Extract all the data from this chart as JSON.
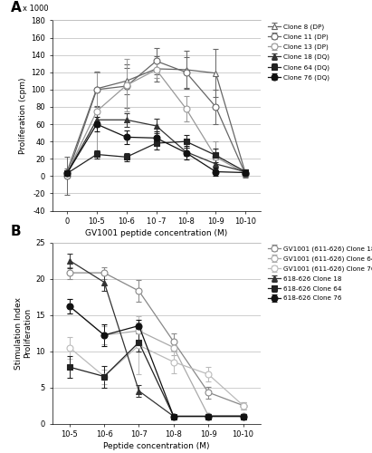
{
  "panel_A": {
    "x_labels": [
      "0",
      "10-5",
      "10-6",
      "10 -7",
      "10-8",
      "10-9",
      "10-10"
    ],
    "x_positions": [
      0,
      1,
      2,
      3,
      4,
      5,
      6
    ],
    "ylabel": "Proliferation (cpm)",
    "xlabel": "GV1001 peptide concentration (M)",
    "y_scale_label": "x 1000",
    "ylim": [
      -40,
      180
    ],
    "yticks": [
      -40,
      -20,
      0,
      20,
      40,
      60,
      80,
      100,
      120,
      140,
      160,
      180
    ],
    "series": [
      {
        "label": "Clone 8 (DP)",
        "marker": "^",
        "filled": false,
        "color": "#666666",
        "linewidth": 0.9,
        "markersize": 5,
        "values": [
          5,
          101,
          110,
          124,
          123,
          119,
          3
        ],
        "errors": [
          4,
          20,
          15,
          15,
          22,
          28,
          4
        ]
      },
      {
        "label": "Clone 11 (DP)",
        "marker": "o",
        "filled": false,
        "color": "#666666",
        "linewidth": 0.9,
        "markersize": 5,
        "values": [
          0,
          100,
          104,
          133,
          120,
          80,
          2
        ],
        "errors": [
          22,
          20,
          25,
          15,
          18,
          20,
          4
        ]
      },
      {
        "label": "Clone 13 (DP)",
        "marker": "o",
        "filled": false,
        "color": "#999999",
        "linewidth": 0.9,
        "markersize": 5,
        "values": [
          3,
          75,
          105,
          123,
          78,
          22,
          3
        ],
        "errors": [
          3,
          45,
          30,
          10,
          15,
          18,
          3
        ]
      },
      {
        "label": "Clone 18 (DQ)",
        "marker": "^",
        "filled": true,
        "color": "#333333",
        "linewidth": 0.9,
        "markersize": 5,
        "values": [
          3,
          65,
          65,
          58,
          28,
          14,
          5
        ],
        "errors": [
          2,
          8,
          8,
          8,
          5,
          5,
          3
        ]
      },
      {
        "label": "Clone 64 (DQ)",
        "marker": "s",
        "filled": true,
        "color": "#222222",
        "linewidth": 0.9,
        "markersize": 5,
        "values": [
          3,
          25,
          22,
          38,
          40,
          24,
          5
        ],
        "errors": [
          2,
          5,
          5,
          7,
          7,
          8,
          3
        ]
      },
      {
        "label": "Clone 76 (DQ)",
        "marker": "o",
        "filled": true,
        "color": "#111111",
        "linewidth": 0.9,
        "markersize": 5,
        "values": [
          3,
          60,
          45,
          44,
          27,
          5,
          4
        ],
        "errors": [
          2,
          8,
          8,
          8,
          8,
          5,
          3
        ]
      }
    ]
  },
  "panel_B": {
    "x_labels": [
      "10-5",
      "10-6",
      "10-7",
      "10-8",
      "10-9",
      "10-10"
    ],
    "x_positions": [
      0,
      1,
      2,
      3,
      4,
      5
    ],
    "ylabel": "Stimulation Index\nProliferation",
    "xlabel": "Peptide concentration (M)",
    "ylim": [
      0,
      25
    ],
    "yticks": [
      0,
      5,
      10,
      15,
      20,
      25
    ],
    "series": [
      {
        "label": "GV1001 (611-626) Clone 18",
        "marker": "o",
        "filled": false,
        "color": "#888888",
        "linewidth": 0.9,
        "markersize": 5,
        "values": [
          20.8,
          20.8,
          18.3,
          11.3,
          4.3,
          2.5
        ],
        "errors": [
          0.8,
          0.8,
          1.5,
          1.2,
          0.8,
          0.5
        ]
      },
      {
        "label": "GV1001 (611-626) Clone 64",
        "marker": "o",
        "filled": false,
        "color": "#aaaaaa",
        "linewidth": 0.9,
        "markersize": 5,
        "values": [
          16.2,
          12.2,
          12.8,
          10.5,
          1.1,
          1.1
        ],
        "errors": [
          1.0,
          1.2,
          1.2,
          1.0,
          0.2,
          0.2
        ]
      },
      {
        "label": "GV1001 (611-626) Clone 76",
        "marker": "o",
        "filled": false,
        "color": "#bbbbbb",
        "linewidth": 0.9,
        "markersize": 5,
        "values": [
          10.5,
          6.5,
          10.8,
          8.5,
          6.8,
          2.5
        ],
        "errors": [
          1.5,
          1.0,
          4.0,
          1.5,
          1.0,
          0.5
        ]
      },
      {
        "label": "618-626 Clone 18",
        "marker": "^",
        "filled": true,
        "color": "#333333",
        "linewidth": 0.9,
        "markersize": 5,
        "values": [
          22.5,
          19.5,
          4.5,
          1.0,
          1.0,
          1.0
        ],
        "errors": [
          1.0,
          1.2,
          0.8,
          0.15,
          0.15,
          0.15
        ]
      },
      {
        "label": "618-626 Clone 64",
        "marker": "s",
        "filled": true,
        "color": "#222222",
        "linewidth": 0.9,
        "markersize": 5,
        "values": [
          7.8,
          6.5,
          11.2,
          1.0,
          1.0,
          1.0
        ],
        "errors": [
          1.5,
          1.5,
          1.2,
          0.15,
          0.15,
          0.15
        ]
      },
      {
        "label": "618-626 Clone 76",
        "marker": "o",
        "filled": true,
        "color": "#111111",
        "linewidth": 0.9,
        "markersize": 5,
        "values": [
          16.2,
          12.2,
          13.5,
          1.0,
          1.0,
          1.0
        ],
        "errors": [
          1.0,
          1.5,
          0.8,
          0.15,
          0.15,
          0.15
        ]
      }
    ]
  }
}
